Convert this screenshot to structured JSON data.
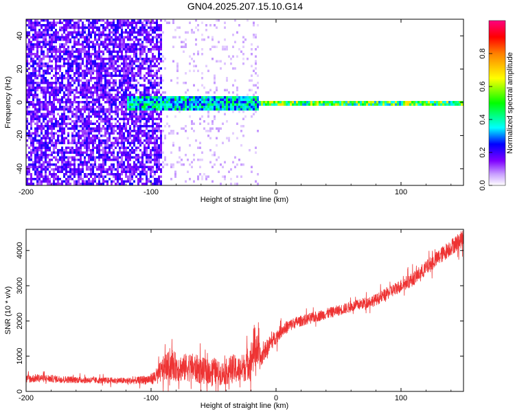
{
  "title": "GN04.2025.207.15.10.G14",
  "chart_data": [
    {
      "type": "heatmap",
      "xlabel": "Height of straight line (km)",
      "ylabel": "Frequency (Hz)",
      "xlim": [
        -200,
        150
      ],
      "ylim": [
        -50,
        50
      ],
      "xticks": [
        -200,
        -100,
        0,
        100
      ],
      "yticks": [
        -40,
        -20,
        0,
        20,
        40
      ],
      "colorbar": {
        "label": "Normalized spectral amplitude",
        "range": [
          0,
          1
        ],
        "ticks": [
          "0.0",
          "0.2",
          "0.4",
          "0.6",
          "0.8"
        ],
        "colormap": [
          "#ffffff",
          "#7f00ff",
          "#0000ff",
          "#00ffff",
          "#00ff00",
          "#ffff00",
          "#ff0000",
          "#ff0080"
        ]
      },
      "features": [
        {
          "name": "noise",
          "x_range": [
            -200,
            -92
          ],
          "y_range": [
            -50,
            50
          ],
          "amplitude": 0.15
        },
        {
          "name": "sparse-noise",
          "x_range": [
            -92,
            -15
          ],
          "y_range": [
            -50,
            50
          ],
          "amplitude": 0.05
        },
        {
          "name": "band",
          "x_range": [
            -120,
            -15
          ],
          "y_range": [
            -4,
            4
          ],
          "amplitude": 0.35
        },
        {
          "name": "band",
          "x_range": [
            -15,
            150
          ],
          "y_range": [
            -2,
            2
          ],
          "amplitude": 0.5
        },
        {
          "name": "line",
          "x_range": [
            -15,
            150
          ],
          "y_range": [
            -0.5,
            0.5
          ],
          "amplitude": 0.9
        }
      ]
    },
    {
      "type": "line",
      "xlabel": "Height of straight line (km)",
      "ylabel": "SNR (10 * v/v)",
      "xlim": [
        -200,
        150
      ],
      "ylim": [
        0,
        4600
      ],
      "xticks": [
        -200,
        -100,
        0,
        100
      ],
      "yticks": [
        0,
        1000,
        2000,
        3000,
        4000
      ],
      "color": "#ee3333",
      "series": [
        {
          "x": [
            -200,
            -190,
            -180,
            -170,
            -160,
            -150,
            -140,
            -130,
            -120,
            -110,
            -100,
            -95,
            -90,
            -85,
            -80,
            -75,
            -70,
            -65,
            -60,
            -55,
            -50,
            -45,
            -40,
            -35,
            -30,
            -25,
            -20,
            -17,
            -15,
            -12,
            -10,
            -5,
            0,
            5,
            10,
            15,
            20,
            30,
            40,
            50,
            60,
            70,
            80,
            90,
            100,
            110,
            120,
            130,
            140,
            150
          ],
          "y": [
            350,
            380,
            360,
            340,
            330,
            320,
            310,
            310,
            300,
            310,
            350,
            450,
            650,
            750,
            700,
            650,
            700,
            650,
            600,
            550,
            600,
            500,
            550,
            650,
            600,
            700,
            900,
            1300,
            1150,
            900,
            1100,
            1350,
            1550,
            1750,
            1850,
            1950,
            2000,
            2100,
            2200,
            2300,
            2400,
            2500,
            2600,
            2800,
            3000,
            3200,
            3500,
            3800,
            4100,
            4350
          ],
          "spread": [
            200,
            200,
            180,
            170,
            160,
            160,
            150,
            150,
            150,
            180,
            260,
            400,
            600,
            700,
            700,
            650,
            700,
            700,
            650,
            600,
            650,
            550,
            600,
            700,
            650,
            700,
            900,
            1200,
            800,
            500,
            400,
            400,
            350,
            300,
            300,
            280,
            260,
            260,
            260,
            260,
            260,
            270,
            280,
            300,
            320,
            340,
            360,
            380,
            400,
            420
          ]
        }
      ]
    }
  ]
}
